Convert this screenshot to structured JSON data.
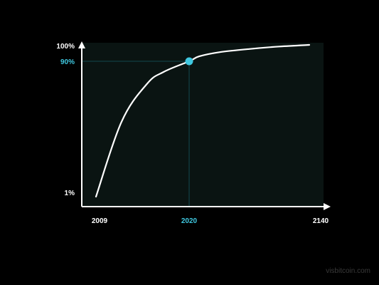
{
  "chart_data": {
    "type": "line",
    "title": "",
    "xlabel": "",
    "ylabel": "",
    "x_ticks": [
      "2009",
      "2020",
      "2140"
    ],
    "y_ticks": [
      "1%",
      "90%",
      "100%"
    ],
    "series": [
      {
        "x": [
          2009,
          2012,
          2015,
          2017,
          2020,
          2030,
          2050,
          2080,
          2110,
          2140
        ],
        "y": [
          1,
          50,
          75,
          83,
          90,
          93,
          95.5,
          97.5,
          99,
          100
        ]
      }
    ],
    "highlight": {
      "x": 2020,
      "y": 90,
      "x_label": "2020",
      "y_label": "90%"
    },
    "colors": {
      "line": "#ffffff",
      "highlight": "#3fc8e0",
      "guide": "#11494e",
      "plot_bg": "#0a1412",
      "axis": "#ffffff"
    }
  },
  "watermark": "visbitcoin.com"
}
